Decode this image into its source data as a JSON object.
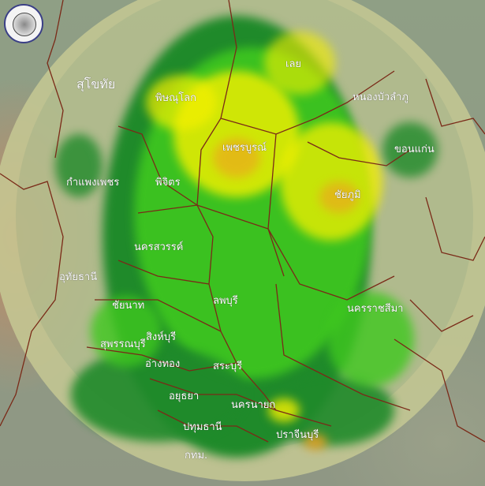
{
  "map": {
    "type": "weather-radar-composite",
    "colors": {
      "light_rain": "#1f8a2a",
      "moderate": "#3fc81f",
      "heavy": "#f5f000",
      "very_heavy": "#f0a020",
      "border": "#7a2a18"
    },
    "provinces": [
      {
        "name": "สุโขทัย"
      },
      {
        "name": "พิษณุโลก"
      },
      {
        "name": "เลย"
      },
      {
        "name": "หนองบัวลำภู"
      },
      {
        "name": "เพชรบูรณ์"
      },
      {
        "name": "ขอนแก่น"
      },
      {
        "name": "กำแพงเพชร"
      },
      {
        "name": "พิจิตร"
      },
      {
        "name": "ชัยภูมิ"
      },
      {
        "name": "นครสวรรค์"
      },
      {
        "name": "อุทัยธานี"
      },
      {
        "name": "ลพบุรี"
      },
      {
        "name": "ชัยนาท"
      },
      {
        "name": "นครราชสีมา"
      },
      {
        "name": "สิงห์บุรี"
      },
      {
        "name": "สุพรรณบุรี"
      },
      {
        "name": "อ่างทอง"
      },
      {
        "name": "สระบุรี"
      },
      {
        "name": "อยุธยา"
      },
      {
        "name": "นครนายก"
      },
      {
        "name": "ปทุมธานี"
      },
      {
        "name": "ปราจีนบุรี"
      },
      {
        "name": "กทม."
      }
    ]
  }
}
